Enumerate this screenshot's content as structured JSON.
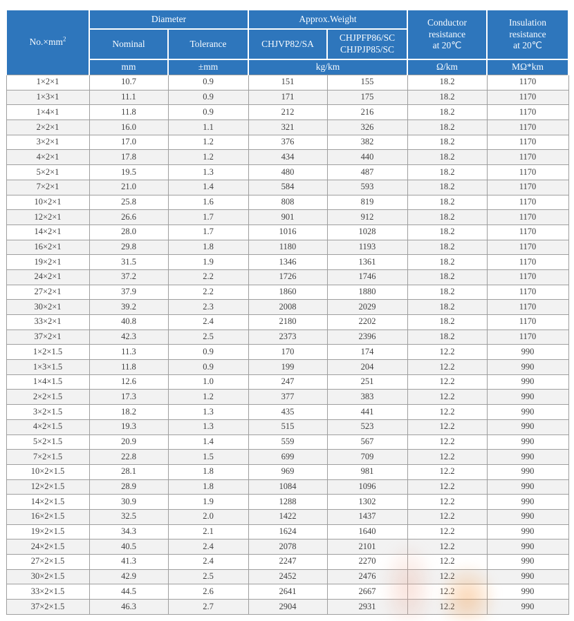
{
  "colors": {
    "header_bg": "#2e76bc",
    "header_text": "#ffffff",
    "row_bg": "#ffffff",
    "row_alt_bg": "#f2f2f2",
    "border": "#9e9e9e",
    "text": "#404040"
  },
  "table": {
    "header": {
      "no_mm_base": "No.×mm",
      "no_mm_sup": "2",
      "diameter": "Diameter",
      "approx_weight": "Approx.Weight",
      "nominal": "Nominal",
      "tolerance": "Tolerance",
      "weight_col_a": "CHJVP82/SA",
      "weight_col_b": "CHJPFP86/SC\nCHJPJP85/SC",
      "conductor_resistance": "Conductor\nresistance\nat 20℃",
      "insulation_resistance": "Insulation\nresistance\nat 20℃"
    },
    "units": {
      "nominal": "mm",
      "tolerance": "±mm",
      "weight": "kg/km",
      "conductor": "Ω/km",
      "insulation": "MΩ*km"
    },
    "rows": [
      [
        "1×2×1",
        "10.7",
        "0.9",
        "151",
        "155",
        "18.2",
        "1170"
      ],
      [
        "1×3×1",
        "11.1",
        "0.9",
        "171",
        "175",
        "18.2",
        "1170"
      ],
      [
        "1×4×1",
        "11.8",
        "0.9",
        "212",
        "216",
        "18.2",
        "1170"
      ],
      [
        "2×2×1",
        "16.0",
        "1.1",
        "321",
        "326",
        "18.2",
        "1170"
      ],
      [
        "3×2×1",
        "17.0",
        "1.2",
        "376",
        "382",
        "18.2",
        "1170"
      ],
      [
        "4×2×1",
        "17.8",
        "1.2",
        "434",
        "440",
        "18.2",
        "1170"
      ],
      [
        "5×2×1",
        "19.5",
        "1.3",
        "480",
        "487",
        "18.2",
        "1170"
      ],
      [
        "7×2×1",
        "21.0",
        "1.4",
        "584",
        "593",
        "18.2",
        "1170"
      ],
      [
        "10×2×1",
        "25.8",
        "1.6",
        "808",
        "819",
        "18.2",
        "1170"
      ],
      [
        "12×2×1",
        "26.6",
        "1.7",
        "901",
        "912",
        "18.2",
        "1170"
      ],
      [
        "14×2×1",
        "28.0",
        "1.7",
        "1016",
        "1028",
        "18.2",
        "1170"
      ],
      [
        "16×2×1",
        "29.8",
        "1.8",
        "1180",
        "1193",
        "18.2",
        "1170"
      ],
      [
        "19×2×1",
        "31.5",
        "1.9",
        "1346",
        "1361",
        "18.2",
        "1170"
      ],
      [
        "24×2×1",
        "37.2",
        "2.2",
        "1726",
        "1746",
        "18.2",
        "1170"
      ],
      [
        "27×2×1",
        "37.9",
        "2.2",
        "1860",
        "1880",
        "18.2",
        "1170"
      ],
      [
        "30×2×1",
        "39.2",
        "2.3",
        "2008",
        "2029",
        "18.2",
        "1170"
      ],
      [
        "33×2×1",
        "40.8",
        "2.4",
        "2180",
        "2202",
        "18.2",
        "1170"
      ],
      [
        "37×2×1",
        "42.3",
        "2.5",
        "2373",
        "2396",
        "18.2",
        "1170"
      ],
      [
        "1×2×1.5",
        "11.3",
        "0.9",
        "170",
        "174",
        "12.2",
        "990"
      ],
      [
        "1×3×1.5",
        "11.8",
        "0.9",
        "199",
        "204",
        "12.2",
        "990"
      ],
      [
        "1×4×1.5",
        "12.6",
        "1.0",
        "247",
        "251",
        "12.2",
        "990"
      ],
      [
        "2×2×1.5",
        "17.3",
        "1.2",
        "377",
        "383",
        "12.2",
        "990"
      ],
      [
        "3×2×1.5",
        "18.2",
        "1.3",
        "435",
        "441",
        "12.2",
        "990"
      ],
      [
        "4×2×1.5",
        "19.3",
        "1.3",
        "515",
        "523",
        "12.2",
        "990"
      ],
      [
        "5×2×1.5",
        "20.9",
        "1.4",
        "559",
        "567",
        "12.2",
        "990"
      ],
      [
        "7×2×1.5",
        "22.8",
        "1.5",
        "699",
        "709",
        "12.2",
        "990"
      ],
      [
        "10×2×1.5",
        "28.1",
        "1.8",
        "969",
        "981",
        "12.2",
        "990"
      ],
      [
        "12×2×1.5",
        "28.9",
        "1.8",
        "1084",
        "1096",
        "12.2",
        "990"
      ],
      [
        "14×2×1.5",
        "30.9",
        "1.9",
        "1288",
        "1302",
        "12.2",
        "990"
      ],
      [
        "16×2×1.5",
        "32.5",
        "2.0",
        "1422",
        "1437",
        "12.2",
        "990"
      ],
      [
        "19×2×1.5",
        "34.3",
        "2.1",
        "1624",
        "1640",
        "12.2",
        "990"
      ],
      [
        "24×2×1.5",
        "40.5",
        "2.4",
        "2078",
        "2101",
        "12.2",
        "990"
      ],
      [
        "27×2×1.5",
        "41.3",
        "2.4",
        "2247",
        "2270",
        "12.2",
        "990"
      ],
      [
        "30×2×1.5",
        "42.9",
        "2.5",
        "2452",
        "2476",
        "12.2",
        "990"
      ],
      [
        "33×2×1.5",
        "44.5",
        "2.6",
        "2641",
        "2667",
        "12.2",
        "990"
      ],
      [
        "37×2×1.5",
        "46.3",
        "2.7",
        "2904",
        "2931",
        "12.2",
        "990"
      ]
    ]
  }
}
